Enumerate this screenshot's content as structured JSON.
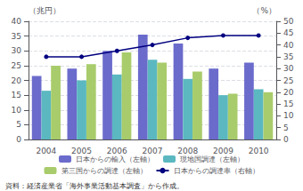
{
  "chart_data": {
    "type": "bar",
    "categories": [
      "2004",
      "2005",
      "2006",
      "2007",
      "2008",
      "2009",
      "2010"
    ],
    "series": [
      {
        "name": "日本からの輸入（左軸）",
        "color": "#6b6bcc",
        "values": [
          21.5,
          24.0,
          30.0,
          35.5,
          32.5,
          24.0,
          26.0
        ]
      },
      {
        "name": "現地国調達（左軸）",
        "color": "#5bb8c0",
        "values": [
          16.5,
          20.0,
          22.0,
          27.0,
          20.5,
          15.0,
          17.0
        ]
      },
      {
        "name": "第三国からの調達（左軸）",
        "color": "#a8cc6b",
        "values": [
          25.0,
          25.5,
          29.5,
          26.0,
          23.0,
          15.5,
          16.0
        ]
      },
      {
        "name": "日本からの調達率（右軸）",
        "color": "#000080",
        "type": "line",
        "marker": "circle",
        "axis": "y2",
        "values": [
          35.0,
          35.0,
          37.5,
          40.0,
          43.0,
          44.0,
          44.0
        ]
      }
    ],
    "ylabel": "（兆円）",
    "y2label": "（%）",
    "ylim": [
      0,
      40
    ],
    "yticks": [
      0,
      5,
      10,
      15,
      20,
      25,
      30,
      35,
      40
    ],
    "y2lim": [
      0,
      50
    ],
    "y2ticks": [
      0,
      5,
      10,
      15,
      20,
      25,
      30,
      35,
      40,
      45,
      50
    ],
    "grid": true,
    "legend": "bottom",
    "annotation": "資料：経済産業省「海外事業活動基本調査」から作成。"
  }
}
